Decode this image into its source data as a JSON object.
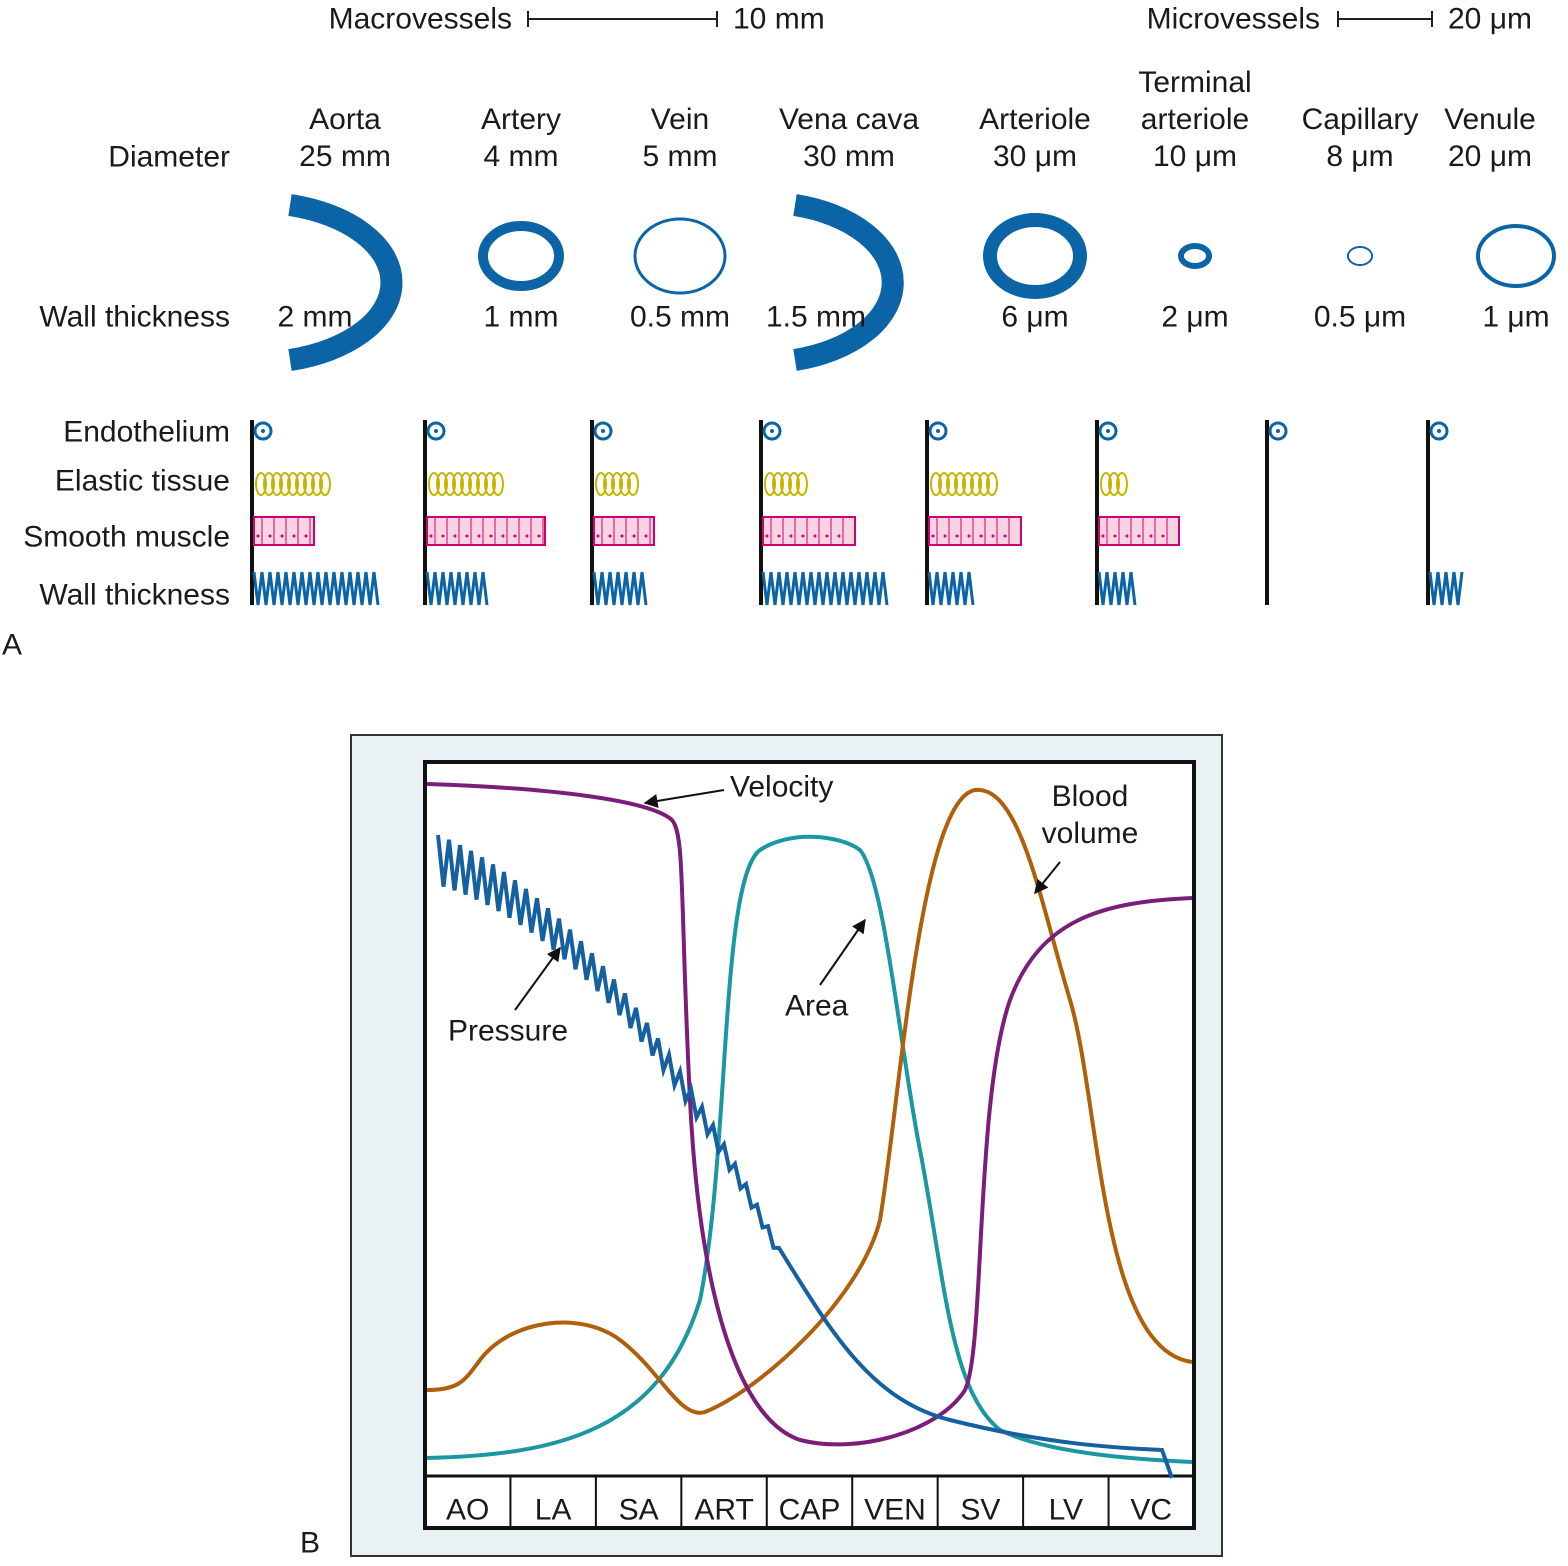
{
  "panel_a": {
    "label": "A",
    "scale_bars": [
      {
        "label": "Macrovessels",
        "length": "10 mm"
      },
      {
        "label": "Microvessels",
        "length": "20 μm"
      }
    ],
    "row_labels": {
      "diameter": "Diameter",
      "wall_thickness": "Wall thickness"
    },
    "vessels": [
      {
        "name": "Aorta",
        "diameter": "25 mm",
        "wall": "2 mm"
      },
      {
        "name": "Artery",
        "diameter": "4 mm",
        "wall": "1 mm"
      },
      {
        "name": "Vein",
        "diameter": "5 mm",
        "wall": "0.5 mm"
      },
      {
        "name": "Vena cava",
        "diameter": "30 mm",
        "wall": "1.5 mm"
      },
      {
        "name": "Arteriole",
        "diameter": "30 μm",
        "wall": "6 μm"
      },
      {
        "name": "Terminal arteriole",
        "diameter": "10 μm",
        "wall": "2 μm"
      },
      {
        "name": "Capillary",
        "diameter": "8 μm",
        "wall": "0.5 μm"
      },
      {
        "name": "Venule",
        "diameter": "20 μm",
        "wall": "1 μm"
      }
    ],
    "layers": [
      "Endothelium",
      "Elastic tissue",
      "Smooth muscle",
      "Wall thickness"
    ]
  },
  "panel_b": {
    "label": "B",
    "curves": {
      "velocity": "Velocity",
      "pressure": "Pressure",
      "area": "Area",
      "blood_volume": "Blood volume"
    },
    "segments": [
      "AO",
      "LA",
      "SA",
      "ART",
      "CAP",
      "VEN",
      "SV",
      "LV",
      "VC"
    ]
  }
}
